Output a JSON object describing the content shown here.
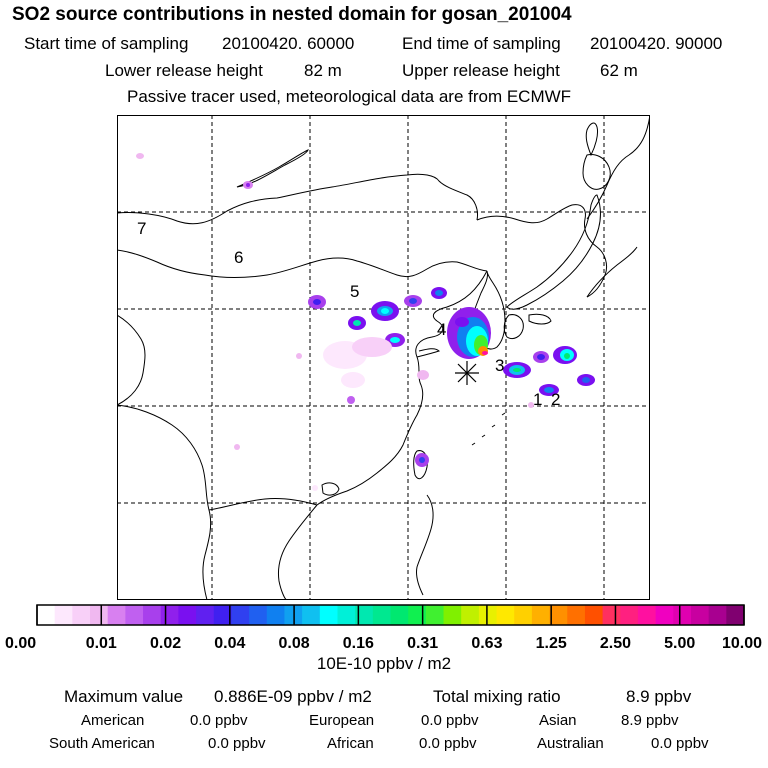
{
  "header": {
    "title": "SO2 source contributions in nested domain for gosan_201004",
    "start_label": "Start time of sampling",
    "start_value": "20100420. 60000",
    "end_label": "End time of sampling",
    "end_value": "20100420. 90000",
    "lower_label": "Lower release height",
    "lower_value": "82 m",
    "upper_label": "Upper release height",
    "upper_value": "62 m",
    "note": "Passive tracer used, meteorological data are from ECMWF"
  },
  "map": {
    "region_labels": [
      "7",
      "6",
      "5",
      "4",
      "3",
      "1",
      "2"
    ],
    "receptor_marker": "asterisk-icon"
  },
  "colorbar": {
    "tick_labels": [
      "0.00",
      "0.01",
      "0.02",
      "0.04",
      "0.08",
      "0.16",
      "0.31",
      "0.63",
      "1.25",
      "2.50",
      "5.00",
      "10.00"
    ],
    "colors": [
      "#ffffff",
      "#fde8fd",
      "#f8d0f8",
      "#f0b8f0",
      "#d880f0",
      "#c060f0",
      "#a840ec",
      "#9020ec",
      "#7a10f0",
      "#6020f0",
      "#4020f0",
      "#3040f0",
      "#2060f0",
      "#1080f0",
      "#10a0f0",
      "#10c0f0",
      "#00ffff",
      "#00f0d8",
      "#00e8b0",
      "#00e890",
      "#00e870",
      "#10f050",
      "#40f030",
      "#80f000",
      "#c0f000",
      "#e8f000",
      "#ffe800",
      "#ffd000",
      "#ffb000",
      "#ff9000",
      "#ff7000",
      "#ff5000",
      "#ff3060",
      "#ff2080",
      "#ff10a0",
      "#f000c0",
      "#e000b0",
      "#c800a0",
      "#a80090",
      "#800070"
    ],
    "unit": "10E-10 ppbv / m2"
  },
  "stats": {
    "max_label": "Maximum value",
    "max_value": "0.886E-09 ppbv / m2",
    "total_label": "Total mixing ratio",
    "total_value": "8.9 ppbv",
    "regions": [
      {
        "name": "American",
        "value": "0.0 ppbv"
      },
      {
        "name": "European",
        "value": "0.0 ppbv"
      },
      {
        "name": "Asian",
        "value": "8.9 ppbv"
      },
      {
        "name": "South American",
        "value": "0.0 ppbv"
      },
      {
        "name": "African",
        "value": "0.0 ppbv"
      },
      {
        "name": "Australian",
        "value": "0.0 ppbv"
      }
    ]
  }
}
